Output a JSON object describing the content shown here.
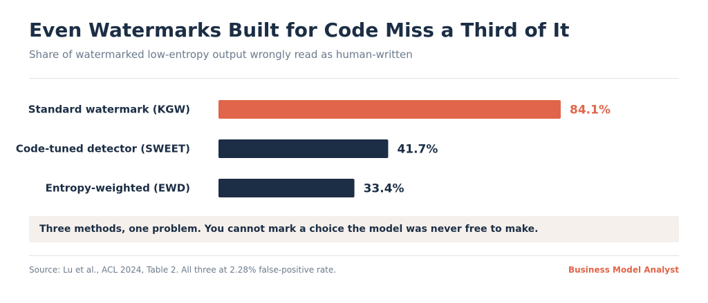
{
  "header": {
    "title": "Even Watermarks Built for Code Miss a Third of It",
    "subtitle": "Share of watermarked low-entropy output wrongly read as human-written"
  },
  "chart_data": {
    "type": "bar",
    "orientation": "horizontal",
    "categories": [
      "Standard watermark (KGW)",
      "Code-tuned detector (SWEET)",
      "Entropy-weighted (EWD)"
    ],
    "values": [
      84.1,
      41.7,
      33.4
    ],
    "value_labels": [
      "84.1%",
      "41.7%",
      "33.4%"
    ],
    "unit": "%",
    "xlim": [
      0,
      84.1
    ],
    "grid": false,
    "legend": "none",
    "colors": {
      "highlight": "#e0654a",
      "default": "#1c2e45"
    },
    "highlight_index": 0
  },
  "callout": {
    "text": "Three methods, one problem. You cannot mark a choice the model was never free to make."
  },
  "footer": {
    "source": "Source: Lu et al., ACL 2024, Table 2. All three at 2.28% false-positive rate.",
    "brand": "Business Model Analyst"
  }
}
